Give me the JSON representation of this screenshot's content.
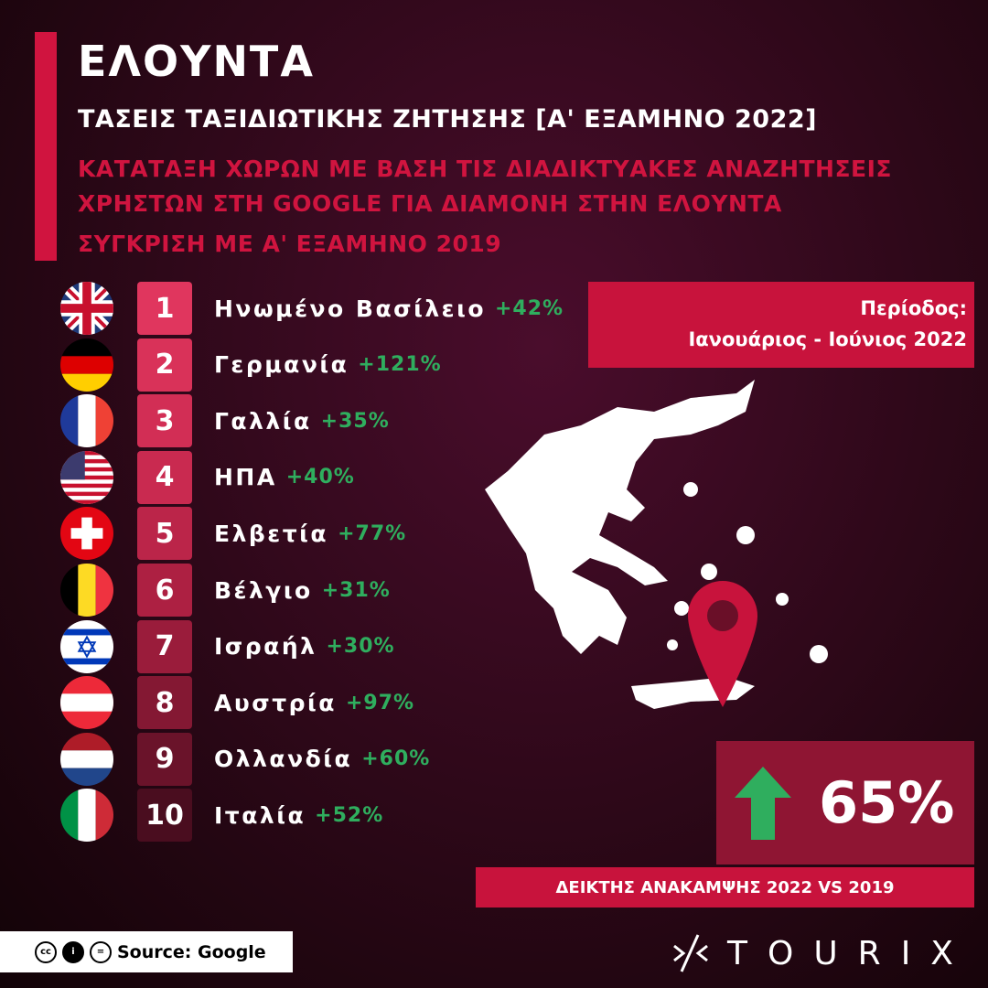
{
  "header": {
    "title": "ΕΛΟΥΝΤΑ",
    "subtitle": "ΤΑΣΕΙΣ ΤΑΞΙΔΙΩΤΙΚΗΣ ΖΗΤΗΣΗΣ [Α' ΕΞΑΜΗΝΟ 2022]",
    "lines": [
      "ΚΑΤΑΤΑΞΗ ΧΩΡΩΝ ΜΕ ΒΑΣΗ ΤΙΣ ΔΙΑΔΙΚΤΥΑΚΕΣ ΑΝΑΖΗΤΗΣΕΙΣ",
      "ΧΡΗΣΤΩΝ ΣΤΗ GOOGLE ΓΙΑ ΔΙΑΜΟΝΗ ΣΤΗΝ ΕΛΟΥΝΤΑ",
      "ΣΥΓΚΡΙΣΗ ΜΕ Α' ΕΞΑΜΗΝΟ 2019"
    ]
  },
  "ranking": [
    {
      "rank": "1",
      "name": "Ηνωμένο Βασίλειο",
      "change": "+42%",
      "flag": "uk"
    },
    {
      "rank": "2",
      "name": "Γερμανία",
      "change": "+121%",
      "flag": "de"
    },
    {
      "rank": "3",
      "name": "Γαλλία",
      "change": "+35%",
      "flag": "fr"
    },
    {
      "rank": "4",
      "name": "ΗΠΑ",
      "change": "+40%",
      "flag": "us"
    },
    {
      "rank": "5",
      "name": "Ελβετία",
      "change": "+77%",
      "flag": "ch"
    },
    {
      "rank": "6",
      "name": "Βέλγιο",
      "change": "+31%",
      "flag": "be"
    },
    {
      "rank": "7",
      "name": "Ισραήλ",
      "change": "+30%",
      "flag": "il"
    },
    {
      "rank": "8",
      "name": "Αυστρία",
      "change": "+97%",
      "flag": "at"
    },
    {
      "rank": "9",
      "name": "Ολλανδία",
      "change": "+60%",
      "flag": "nl"
    },
    {
      "rank": "10",
      "name": "Ιταλία",
      "change": "+52%",
      "flag": "it"
    }
  ],
  "period": {
    "label": "Περίοδος:",
    "value": "Ιανουάριος - Ιούνιος 2022"
  },
  "recovery": {
    "value": "65%",
    "label": "ΔΕΙΚΤΗΣ ΑΝΑΚΑΜΨΗΣ 2022 VS 2019",
    "icon": "arrow-up-icon"
  },
  "footer": {
    "source": "Source: Google",
    "brand": "TOURIX"
  },
  "colors": {
    "accent": "#d0143f",
    "positive": "#2fae5e"
  }
}
